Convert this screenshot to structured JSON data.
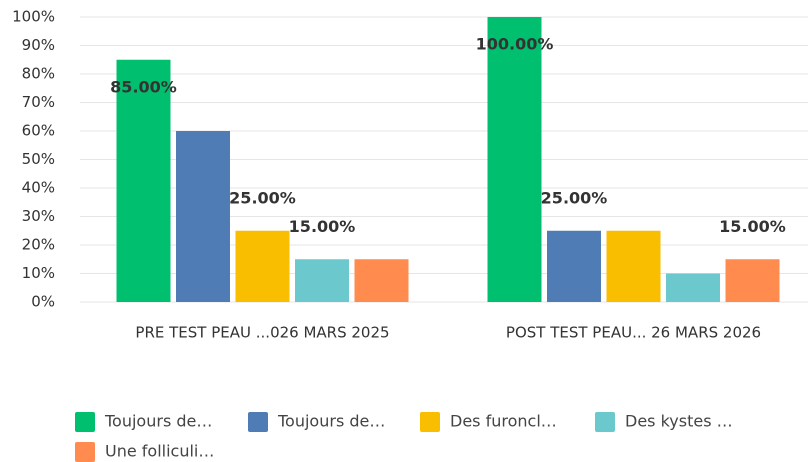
{
  "chart_data": {
    "type": "bar",
    "categories": [
      "PRE TEST PEAU ...026 MARS 2025",
      "POST TEST PEAU... 26 MARS 2026"
    ],
    "series": [
      {
        "name": "Toujours de…",
        "color": "#00bf6f",
        "values": [
          85,
          100
        ],
        "value_labels": [
          "85.00%",
          "100.00%"
        ]
      },
      {
        "name": "Toujours de…",
        "color": "#507cb6",
        "values": [
          60,
          25
        ],
        "value_labels": [
          null,
          "25.00%"
        ]
      },
      {
        "name": "Des furoncl…",
        "color": "#f9be00",
        "values": [
          25,
          25
        ],
        "value_labels": [
          "25.00%",
          null
        ]
      },
      {
        "name": "Des kystes …",
        "color": "#6bc8cd",
        "values": [
          15,
          10
        ],
        "value_labels": [
          "15.00%",
          null
        ]
      },
      {
        "name": "Une folliculi…",
        "color": "#ff8b4f",
        "values": [
          15,
          15
        ],
        "value_labels": [
          null,
          "15.00%"
        ]
      }
    ],
    "ylim": [
      0,
      100
    ],
    "yticks": [
      {
        "value": 0,
        "label": "0%"
      },
      {
        "value": 10,
        "label": "10%"
      },
      {
        "value": 20,
        "label": "20%"
      },
      {
        "value": 30,
        "label": "30%"
      },
      {
        "value": 40,
        "label": "40%"
      },
      {
        "value": 50,
        "label": "50%"
      },
      {
        "value": 60,
        "label": "60%"
      },
      {
        "value": 70,
        "label": "70%"
      },
      {
        "value": 80,
        "label": "80%"
      },
      {
        "value": 90,
        "label": "90%"
      },
      {
        "value": 100,
        "label": "100%"
      }
    ],
    "grid": true
  }
}
